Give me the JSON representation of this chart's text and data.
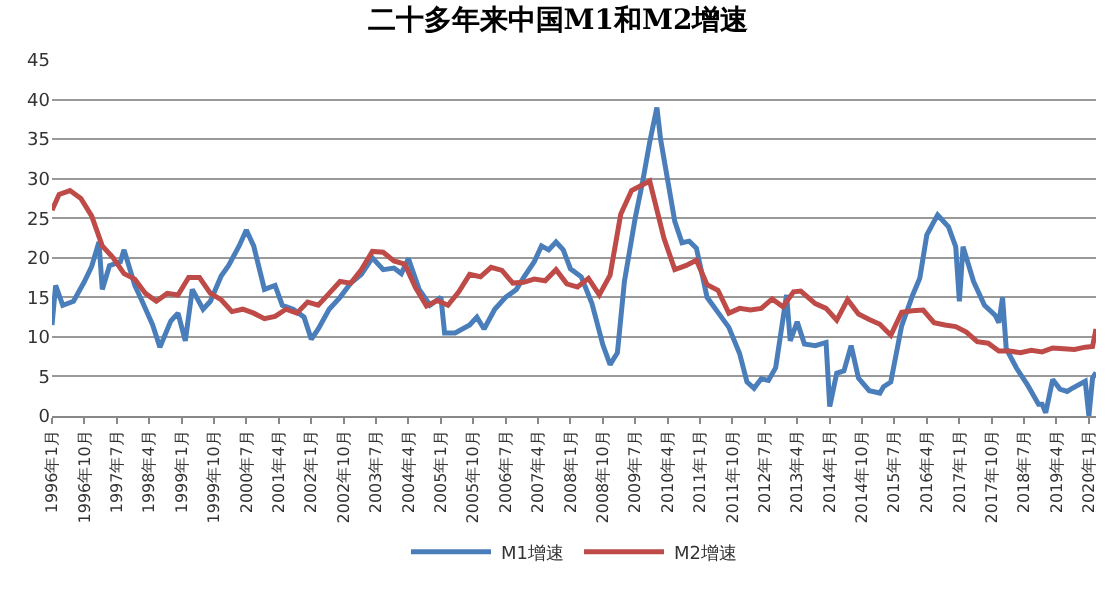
{
  "chart_data": {
    "type": "line",
    "title": "二十多年来中国M1和M2增速",
    "xlim": [
      "1996-01",
      "2020-03"
    ],
    "xticks": [
      {
        "value": "1996-01",
        "label": "1996年1月"
      },
      {
        "value": "1996-10",
        "label": "1996年10月"
      },
      {
        "value": "1997-07",
        "label": "1997年7月"
      },
      {
        "value": "1998-04",
        "label": "1998年4月"
      },
      {
        "value": "1999-01",
        "label": "1999年1月"
      },
      {
        "value": "1999-10",
        "label": "1999年10月"
      },
      {
        "value": "2000-07",
        "label": "2000年7月"
      },
      {
        "value": "2001-04",
        "label": "2001年4月"
      },
      {
        "value": "2002-01",
        "label": "2002年1月"
      },
      {
        "value": "2002-10",
        "label": "2002年10月"
      },
      {
        "value": "2003-07",
        "label": "2003年7月"
      },
      {
        "value": "2004-04",
        "label": "2004年4月"
      },
      {
        "value": "2005-01",
        "label": "2005年1月"
      },
      {
        "value": "2005-10",
        "label": "2005年10月"
      },
      {
        "value": "2006-07",
        "label": "2006年7月"
      },
      {
        "value": "2007-04",
        "label": "2007年4月"
      },
      {
        "value": "2008-01",
        "label": "2008年1月"
      },
      {
        "value": "2008-10",
        "label": "2008年10月"
      },
      {
        "value": "2009-07",
        "label": "2009年7月"
      },
      {
        "value": "2010-04",
        "label": "2010年4月"
      },
      {
        "value": "2011-01",
        "label": "2011年1月"
      },
      {
        "value": "2011-10",
        "label": "2011年10月"
      },
      {
        "value": "2012-07",
        "label": "2012年7月"
      },
      {
        "value": "2013-04",
        "label": "2013年4月"
      },
      {
        "value": "2014-01",
        "label": "2014年1月"
      },
      {
        "value": "2014-10",
        "label": "2014年10月"
      },
      {
        "value": "2015-07",
        "label": "2015年7月"
      },
      {
        "value": "2016-04",
        "label": "2016年4月"
      },
      {
        "value": "2017-01",
        "label": "2017年1月"
      },
      {
        "value": "2017-10",
        "label": "2017年10月"
      },
      {
        "value": "2018-07",
        "label": "2018年7月"
      },
      {
        "value": "2019-04",
        "label": "2019年4月"
      },
      {
        "value": "2020-01",
        "label": "2020年1月"
      }
    ],
    "ylim": [
      0,
      45
    ],
    "yticks": [
      0,
      5,
      10,
      15,
      20,
      25,
      30,
      35,
      40,
      45
    ],
    "grid": "y",
    "legend": "bottom",
    "marker": "none",
    "line_style": "solid",
    "series": [
      {
        "name": "M1增速",
        "color": "#4a7ebb",
        "x": [
          "1996-01",
          "1996-02",
          "1996-04",
          "1996-07",
          "1996-10",
          "1996-12",
          "1997-02",
          "1997-03",
          "1997-05",
          "1997-08",
          "1997-09",
          "1997-12",
          "1998-02",
          "1998-05",
          "1998-07",
          "1998-10",
          "1998-12",
          "1999-02",
          "1999-04",
          "1999-07",
          "1999-09",
          "1999-12",
          "2000-02",
          "2000-05",
          "2000-07",
          "2000-09",
          "2000-12",
          "2001-03",
          "2001-05",
          "2001-08",
          "2001-11",
          "2002-01",
          "2002-03",
          "2002-06",
          "2002-09",
          "2002-12",
          "2003-03",
          "2003-06",
          "2003-09",
          "2003-12",
          "2004-02",
          "2004-04",
          "2004-07",
          "2004-10",
          "2005-01",
          "2005-02",
          "2005-05",
          "2005-09",
          "2005-11",
          "2006-01",
          "2006-04",
          "2006-07",
          "2006-10",
          "2006-12",
          "2007-03",
          "2007-05",
          "2007-07",
          "2007-09",
          "2007-11",
          "2008-01",
          "2008-04",
          "2008-07",
          "2008-10",
          "2008-12",
          "2009-02",
          "2009-04",
          "2009-07",
          "2009-09",
          "2009-11",
          "2010-01",
          "2010-02",
          "2010-04",
          "2010-06",
          "2010-08",
          "2010-10",
          "2010-12",
          "2011-03",
          "2011-06",
          "2011-09",
          "2011-12",
          "2012-02",
          "2012-04",
          "2012-06",
          "2012-08",
          "2012-10",
          "2013-01",
          "2013-02",
          "2013-04",
          "2013-06",
          "2013-09",
          "2013-12",
          "2014-01",
          "2014-03",
          "2014-05",
          "2014-07",
          "2014-09",
          "2014-12",
          "2015-03",
          "2015-04",
          "2015-06",
          "2015-09",
          "2015-12",
          "2016-02",
          "2016-04",
          "2016-06",
          "2016-07",
          "2016-10",
          "2016-12",
          "2017-01",
          "2017-02",
          "2017-05",
          "2017-08",
          "2017-11",
          "2017-12",
          "2018-01",
          "2018-02",
          "2018-05",
          "2018-08",
          "2018-11",
          "2018-12",
          "2019-01",
          "2019-03",
          "2019-05",
          "2019-07",
          "2019-08",
          "2019-12",
          "2020-01",
          "2020-02",
          "2020-03"
        ],
        "values": [
          11.5,
          16.5,
          14,
          14.5,
          17,
          18.9,
          22,
          16,
          19,
          19.5,
          21,
          16.5,
          14.5,
          11.5,
          8.7,
          12,
          13,
          9.5,
          16,
          13.5,
          14.5,
          17.7,
          19,
          21.5,
          23.5,
          21.5,
          16,
          16.5,
          14,
          13.5,
          12.5,
          9.7,
          11,
          13.5,
          15,
          16.8,
          17.9,
          20,
          18.5,
          18.7,
          18,
          19.9,
          16,
          14,
          15,
          10.5,
          10.5,
          11.5,
          12.5,
          11,
          13.5,
          15,
          16,
          17.5,
          19.5,
          21.5,
          21,
          22,
          21,
          18.6,
          17.6,
          14.2,
          9,
          6.5,
          8,
          17,
          25,
          29.5,
          34.6,
          39,
          35,
          29.9,
          24.6,
          21.9,
          22.1,
          21.2,
          15,
          13.1,
          11.2,
          7.9,
          4.3,
          3.5,
          4.7,
          4.5,
          6.1,
          15.3,
          9.5,
          11.9,
          9.1,
          8.9,
          9.3,
          1.2,
          5.4,
          5.7,
          8.9,
          4.8,
          3.2,
          2.9,
          3.7,
          4.3,
          11.4,
          15.2,
          17.4,
          22.9,
          24.6,
          25.4,
          23.9,
          21.4,
          14.5,
          21.4,
          17,
          14,
          12.7,
          11.8,
          15,
          8.5,
          6,
          3.9,
          1.5,
          1.5,
          0.4,
          4.6,
          3.4,
          3.1,
          3.4,
          4.4,
          0,
          4.8,
          5.5
        ]
      },
      {
        "name": "M2增速",
        "color": "#be4b48",
        "x": [
          "1996-01",
          "1996-03",
          "1996-06",
          "1996-09",
          "1996-12",
          "1997-03",
          "1997-06",
          "1997-09",
          "1997-12",
          "1998-03",
          "1998-06",
          "1998-09",
          "1998-12",
          "1999-03",
          "1999-06",
          "1999-09",
          "1999-12",
          "2000-03",
          "2000-06",
          "2000-09",
          "2000-12",
          "2001-03",
          "2001-06",
          "2001-09",
          "2001-12",
          "2002-03",
          "2002-06",
          "2002-09",
          "2002-12",
          "2003-03",
          "2003-06",
          "2003-09",
          "2003-12",
          "2004-03",
          "2004-06",
          "2004-09",
          "2004-12",
          "2005-03",
          "2005-06",
          "2005-09",
          "2005-12",
          "2006-03",
          "2006-06",
          "2006-09",
          "2006-12",
          "2007-03",
          "2007-06",
          "2007-09",
          "2007-12",
          "2008-03",
          "2008-06",
          "2008-09",
          "2008-12",
          "2009-03",
          "2009-06",
          "2009-11",
          "2010-03",
          "2010-06",
          "2010-09",
          "2010-12",
          "2011-03",
          "2011-06",
          "2011-09",
          "2011-12",
          "2012-03",
          "2012-06",
          "2012-09",
          "2012-12",
          "2013-03",
          "2013-05",
          "2013-09",
          "2013-12",
          "2014-03",
          "2014-06",
          "2014-09",
          "2014-12",
          "2015-03",
          "2015-06",
          "2015-09",
          "2015-12",
          "2016-03",
          "2016-06",
          "2016-09",
          "2016-12",
          "2017-03",
          "2017-06",
          "2017-09",
          "2017-12",
          "2018-03",
          "2018-06",
          "2018-09",
          "2018-12",
          "2019-03",
          "2019-06",
          "2019-09",
          "2019-12",
          "2020-02",
          "2020-03"
        ],
        "values": [
          26,
          28,
          28.5,
          27.5,
          25.3,
          21.5,
          20,
          18,
          17.3,
          15.5,
          14.5,
          15.5,
          15.3,
          17.5,
          17.5,
          15.5,
          14.7,
          13.2,
          13.5,
          13,
          12.3,
          12.6,
          13.5,
          13,
          14.4,
          14,
          15.5,
          17,
          16.8,
          18.5,
          20.8,
          20.7,
          19.6,
          19.2,
          16.2,
          13.9,
          14.6,
          14,
          15.7,
          17.9,
          17.6,
          18.8,
          18.4,
          16.8,
          16.9,
          17.3,
          17.1,
          18.5,
          16.7,
          16.3,
          17.4,
          15.3,
          17.8,
          25.5,
          28.5,
          29.7,
          22.5,
          18.5,
          19,
          19.7,
          16.6,
          15.9,
          13,
          13.6,
          13.4,
          13.6,
          14.8,
          13.8,
          15.7,
          15.8,
          14.2,
          13.6,
          12.1,
          14.7,
          12.9,
          12.2,
          11.6,
          10.2,
          13.1,
          13.3,
          13.4,
          11.8,
          11.5,
          11.3,
          10.6,
          9.4,
          9.2,
          8.2,
          8.2,
          8,
          8.3,
          8.1,
          8.6,
          8.5,
          8.4,
          8.7,
          8.8,
          11
        ]
      }
    ]
  }
}
